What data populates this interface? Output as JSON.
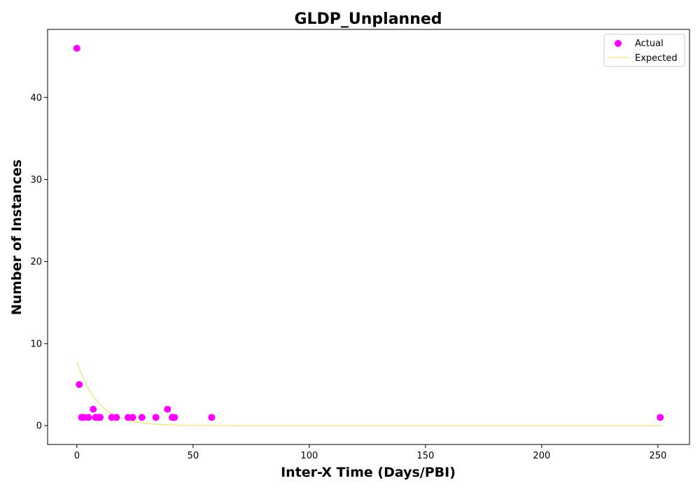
{
  "chart_data": {
    "type": "scatter",
    "title": "GLDP_Unplanned",
    "xlabel": "Inter-X Time (Days/PBI)",
    "ylabel": "Number of Instances",
    "xlim": [
      -12.6,
      263.6
    ],
    "ylim": [
      -2.3,
      48.3
    ],
    "xticks": [
      0,
      50,
      100,
      150,
      200,
      250
    ],
    "yticks": [
      0,
      10,
      20,
      30,
      40
    ],
    "grid": false,
    "legend_position": "top-right",
    "series": [
      {
        "name": "Actual",
        "kind": "scatter",
        "color": "#ff00ff",
        "x": [
          0,
          1,
          2,
          3,
          5,
          7,
          8,
          9,
          10,
          15,
          17,
          22,
          24,
          28,
          34,
          39,
          41,
          42,
          58,
          251
        ],
        "y": [
          46,
          5,
          1,
          1,
          1,
          2,
          1,
          1,
          1,
          1,
          1,
          1,
          1,
          1,
          1,
          2,
          1,
          1,
          1,
          1
        ]
      },
      {
        "name": "Expected",
        "kind": "line",
        "color": "#f0e68c",
        "x": [
          0,
          2,
          4,
          6,
          8,
          10,
          12,
          14,
          16,
          18,
          20,
          22,
          25,
          28,
          32,
          36,
          40,
          45,
          50,
          55,
          60,
          70,
          80,
          100,
          125,
          150,
          175,
          200,
          225,
          252
        ],
        "y": [
          7.8,
          6.25,
          5.0,
          4.0,
          3.2,
          2.56,
          2.05,
          1.64,
          1.31,
          1.05,
          0.84,
          0.67,
          0.48,
          0.34,
          0.22,
          0.14,
          0.09,
          0.05,
          0.03,
          0.02,
          0.01,
          0.0,
          0.0,
          0.0,
          0.0,
          0.0,
          0.0,
          0.0,
          0.0,
          0.0
        ]
      }
    ]
  }
}
